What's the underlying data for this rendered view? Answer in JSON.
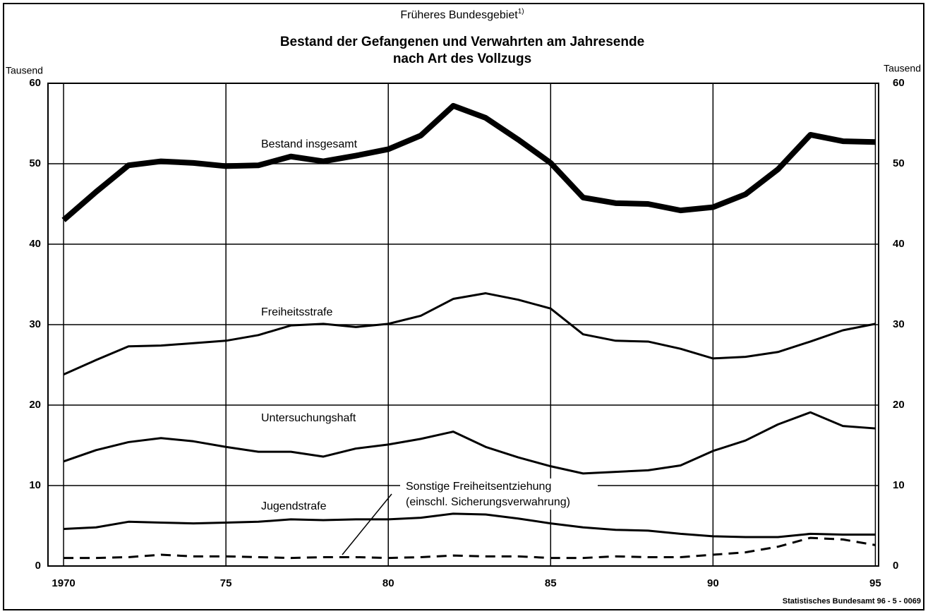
{
  "chart_data": {
    "type": "line",
    "supertitle": "Früheres Bundesgebiet",
    "supertitle_note": "1)",
    "title": [
      "Bestand der Gefangenen und Verwahrten am Jahresende",
      "nach Art des Vollzugs"
    ],
    "ylabel": "Tausend",
    "y2label": "Tausend",
    "source": "Statistisches Bundesamt 96 - 5 - 0069",
    "x": [
      1970,
      1971,
      1972,
      1973,
      1974,
      1975,
      1976,
      1977,
      1978,
      1979,
      1980,
      1981,
      1982,
      1983,
      1984,
      1985,
      1986,
      1987,
      1988,
      1989,
      1990,
      1991,
      1992,
      1993,
      1994,
      1995
    ],
    "xlim": [
      1969.52,
      1995.1
    ],
    "xticks": [
      {
        "value": 1970,
        "label": "1970"
      },
      {
        "value": 1975,
        "label": "75"
      },
      {
        "value": 1980,
        "label": "80"
      },
      {
        "value": 1985,
        "label": "85"
      },
      {
        "value": 1990,
        "label": "90"
      },
      {
        "value": 1995,
        "label": "95"
      }
    ],
    "ylim": [
      0,
      60
    ],
    "yticks": [
      0,
      10,
      20,
      30,
      40,
      50,
      60
    ],
    "y2lim": [
      0,
      60
    ],
    "y2ticks": [
      0,
      10,
      20,
      30,
      40,
      50,
      60
    ],
    "grid": true,
    "series": [
      {
        "name": "Bestand insgesamt",
        "color": "#000000",
        "line_width": 8,
        "dashed": false,
        "values": [
          43,
          46.5,
          49.8,
          50.3,
          50.1,
          49.7,
          49.8,
          50.9,
          50.3,
          51,
          51.8,
          53.5,
          57.2,
          55.7,
          53,
          50.1,
          45.8,
          45.1,
          45,
          44.2,
          44.6,
          46.2,
          49.3,
          53.6,
          52.8,
          52.7
        ]
      },
      {
        "name": "Freiheitsstrafe",
        "color": "#000000",
        "line_width": 3,
        "dashed": false,
        "values": [
          23.8,
          25.6,
          27.3,
          27.4,
          27.7,
          28,
          28.7,
          29.9,
          30.1,
          29.7,
          30.1,
          31.1,
          33.2,
          33.9,
          33.1,
          32,
          28.8,
          28,
          27.9,
          27,
          25.8,
          26,
          26.6,
          27.9,
          29.3,
          30.1
        ]
      },
      {
        "name": "Untersuchungshaft",
        "color": "#000000",
        "line_width": 3,
        "dashed": false,
        "values": [
          13,
          14.4,
          15.4,
          15.9,
          15.5,
          14.8,
          14.2,
          14.2,
          13.6,
          14.6,
          15.1,
          15.8,
          16.7,
          14.8,
          13.5,
          12.4,
          11.5,
          11.7,
          11.9,
          12.5,
          14.3,
          15.6,
          17.6,
          19.1,
          17.4,
          17.1
        ]
      },
      {
        "name": "Jugendstrafe",
        "color": "#000000",
        "line_width": 3,
        "dashed": false,
        "values": [
          4.6,
          4.8,
          5.5,
          5.4,
          5.3,
          5.4,
          5.5,
          5.8,
          5.7,
          5.8,
          5.8,
          6,
          6.5,
          6.4,
          5.9,
          5.3,
          4.8,
          4.5,
          4.4,
          4,
          3.7,
          3.6,
          3.6,
          4,
          3.9,
          3.9
        ]
      },
      {
        "name": "Sonstige Freiheitsentziehung",
        "color": "#000000",
        "line_width": 3,
        "dashed": true,
        "values": [
          1,
          1,
          1.1,
          1.4,
          1.2,
          1.2,
          1.1,
          1,
          1.1,
          1.1,
          1,
          1.1,
          1.3,
          1.2,
          1.2,
          1,
          1,
          1.2,
          1.1,
          1.1,
          1.4,
          1.7,
          2.4,
          3.5,
          3.3,
          2.6
        ]
      }
    ],
    "annotations": [
      {
        "text": "(einschl. Sicherungsverwahrung)"
      }
    ]
  }
}
